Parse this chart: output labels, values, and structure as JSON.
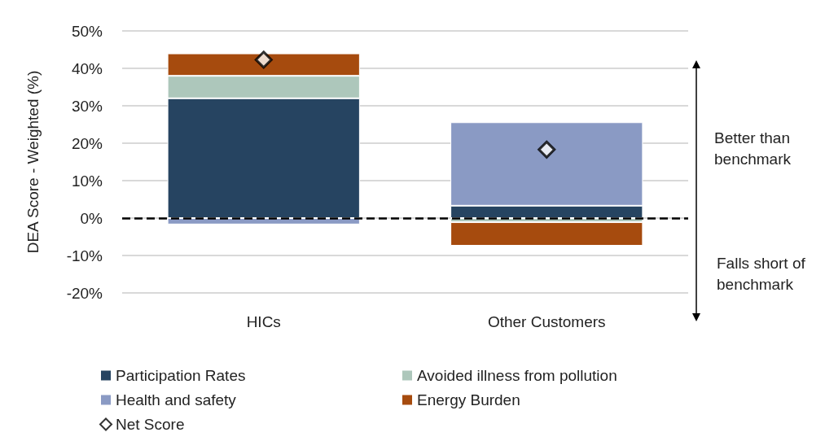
{
  "chart_data": {
    "type": "bar",
    "stacked": true,
    "ylabel": "DEA Score - Weighted (%)",
    "categories": [
      "HICs",
      "Other Customers"
    ],
    "series": [
      {
        "name": "Participation Rates",
        "color": "#264461",
        "values": [
          32,
          3.3
        ]
      },
      {
        "name": "Avoided illness from pollution",
        "color": "#adc7bb",
        "values": [
          6,
          -1.1
        ]
      },
      {
        "name": "Health and safety",
        "color": "#8a9ac4",
        "values": [
          -1.7,
          22.3
        ]
      },
      {
        "name": "Energy Burden",
        "color": "#a64b0e",
        "values": [
          6,
          -6.3
        ]
      },
      {
        "name": "Net Score",
        "type": "scatter",
        "marker": "diamond",
        "color": "#ffffff",
        "x": [
          "HICs",
          "Other Customers"
        ],
        "values": [
          42.3,
          18.3
        ]
      }
    ],
    "ylim": [
      -20,
      50
    ],
    "yticks": [
      {
        "value": -20,
        "label": "-20%"
      },
      {
        "value": -10,
        "label": "-10%"
      },
      {
        "value": 0,
        "label": "0%"
      },
      {
        "value": 10,
        "label": "10%"
      },
      {
        "value": 20,
        "label": "20%"
      },
      {
        "value": 30,
        "label": "30%"
      },
      {
        "value": 40,
        "label": "40%"
      },
      {
        "value": 50,
        "label": "50%"
      }
    ],
    "grid": "y",
    "legend": "bottom",
    "ref_lines": [
      {
        "axis": "y",
        "value": 0,
        "color": "#000000",
        "line_style": "dashed"
      }
    ],
    "annotations": [
      "Better than\nbenchmark",
      "Falls short of\nbenchmark"
    ]
  }
}
